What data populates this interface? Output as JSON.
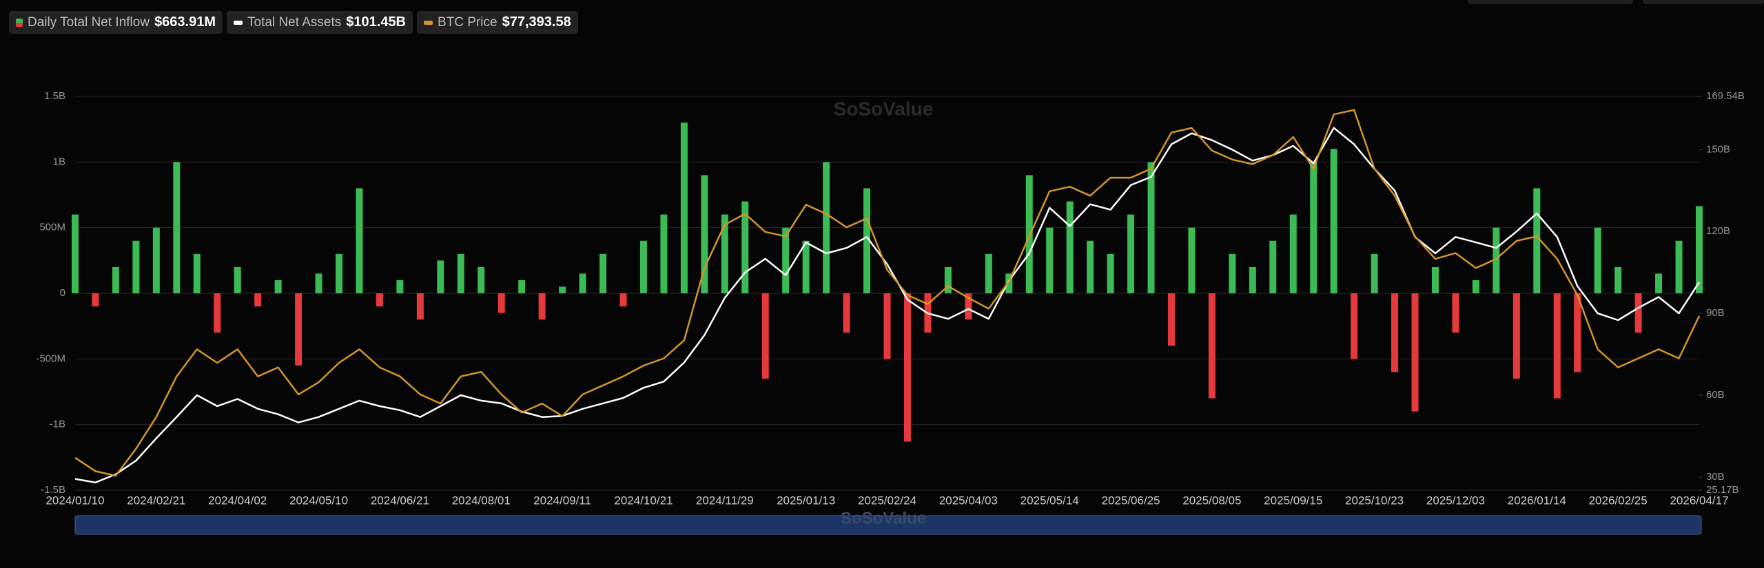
{
  "chart_data": {
    "type": "combo",
    "watermark": "SoSoValue",
    "categories": [
      "2024/01/10",
      null,
      null,
      null,
      "2024/02/21",
      null,
      null,
      null,
      "2024/04/02",
      null,
      null,
      null,
      "2024/05/10",
      null,
      null,
      null,
      "2024/06/21",
      null,
      null,
      null,
      "2024/08/01",
      null,
      null,
      null,
      "2024/09/11",
      null,
      null,
      null,
      "2024/10/21",
      null,
      null,
      null,
      "2024/11/29",
      null,
      null,
      null,
      "2025/01/13",
      null,
      null,
      null,
      "2025/02/24",
      null,
      null,
      null,
      "2025/04/03",
      null,
      null,
      null,
      "2025/05/14",
      null,
      null,
      null,
      "2025/06/25",
      null,
      null,
      null,
      "2025/08/05",
      null,
      null,
      null,
      "2025/09/15",
      null,
      null,
      null,
      "2025/10/23",
      null,
      null,
      null,
      "2025/12/03",
      null,
      null,
      null,
      "2026/01/14",
      null,
      null,
      null,
      "2026/02/25",
      null,
      null,
      null,
      "2026/04/17"
    ],
    "series": [
      {
        "name": "Daily Total Net Inflow",
        "type": "bar",
        "axis": "y",
        "color": "#3cba54",
        "negative_color": "#e5393b",
        "latest": "$663.91M",
        "values": [
          600,
          -100,
          200,
          400,
          500,
          1000,
          300,
          -300,
          200,
          -100,
          100,
          -550,
          150,
          300,
          800,
          -100,
          100,
          -200,
          250,
          300,
          200,
          -150,
          100,
          -200,
          50,
          150,
          300,
          -100,
          400,
          600,
          1300,
          900,
          600,
          700,
          -650,
          500,
          400,
          1000,
          -300,
          800,
          -500,
          -1130,
          -300,
          200,
          -200,
          300,
          150,
          900,
          500,
          700,
          400,
          300,
          600,
          1000,
          -400,
          500,
          -800,
          300,
          200,
          400,
          600,
          1000,
          1100,
          -500,
          300,
          -600,
          -900,
          200,
          -300,
          100,
          500,
          -650,
          800,
          -800,
          -600,
          500,
          200,
          -300,
          150,
          400,
          663.91
        ]
      },
      {
        "name": "Total Net Assets",
        "type": "line",
        "axis": "y2",
        "color": "#ffffff",
        "latest": "$101.45B",
        "values": [
          29.3,
          28,
          31,
          36,
          44.2,
          52,
          60,
          56,
          58.6,
          55,
          53,
          50,
          52,
          55,
          58,
          56,
          54.5,
          52,
          56,
          60,
          58,
          57,
          54,
          52,
          52.4,
          55,
          57,
          59,
          62.7,
          65,
          72,
          82,
          95.7,
          105,
          110,
          104,
          116,
          112,
          114,
          118,
          108,
          95,
          90,
          88,
          91.6,
          88,
          102,
          112,
          128.7,
          122,
          130,
          128,
          137,
          140,
          152,
          156,
          153.5,
          150,
          146,
          148,
          151.4,
          145,
          158,
          152,
          143,
          135,
          118,
          112,
          118,
          116,
          114,
          120,
          126.6,
          118,
          100,
          90,
          87.5,
          92,
          96,
          90,
          101.45
        ]
      },
      {
        "name": "BTC Price",
        "type": "line",
        "axis": "y3",
        "color": "#d4962a",
        "latest": "$77,393.58",
        "values": [
          46000,
          43000,
          42000,
          48000,
          55000,
          64000,
          70000,
          67000,
          70000,
          64000,
          66000,
          60000,
          62700,
          67000,
          70000,
          66000,
          64000,
          60000,
          58000,
          64000,
          65000,
          60000,
          56000,
          58000,
          55200,
          60000,
          62000,
          64000,
          66400,
          68000,
          72000,
          88000,
          97600,
          100000,
          96000,
          95000,
          102000,
          100000,
          97000,
          99000,
          87600,
          82000,
          80000,
          84000,
          81400,
          79000,
          85000,
          95000,
          105000,
          106000,
          104000,
          108000,
          108000,
          110000,
          118000,
          119000,
          114000,
          112000,
          111000,
          113000,
          117000,
          110000,
          122000,
          123000,
          110000,
          104000,
          95000,
          90000,
          91300,
          88000,
          90000,
          94000,
          95000,
          90000,
          82000,
          70000,
          66000,
          68000,
          70000,
          68000,
          77393.58
        ]
      }
    ],
    "ylim": [
      -1500,
      1500
    ],
    "yticks": [
      {
        "value": -1500,
        "label": "-1.5B"
      },
      {
        "value": -1000,
        "label": "-1B"
      },
      {
        "value": -500,
        "label": "-500M"
      },
      0,
      {
        "value": 500,
        "label": "500M"
      },
      {
        "value": 1000,
        "label": "1B"
      },
      {
        "value": 1500,
        "label": "1.5B"
      }
    ],
    "y2lim": [
      25.17,
      169.54
    ],
    "y2ticks": [
      {
        "value": 25.17,
        "label": "25.17B"
      },
      {
        "value": 30,
        "label": "30B"
      },
      {
        "value": 60,
        "label": "60B"
      },
      {
        "value": 90,
        "label": "90B"
      },
      {
        "value": 120,
        "label": "120B"
      },
      {
        "value": 150,
        "label": "150B"
      },
      {
        "value": 169.54,
        "label": "169.54B"
      }
    ],
    "y3lim": [
      38800,
      126000
    ],
    "grid": true
  }
}
